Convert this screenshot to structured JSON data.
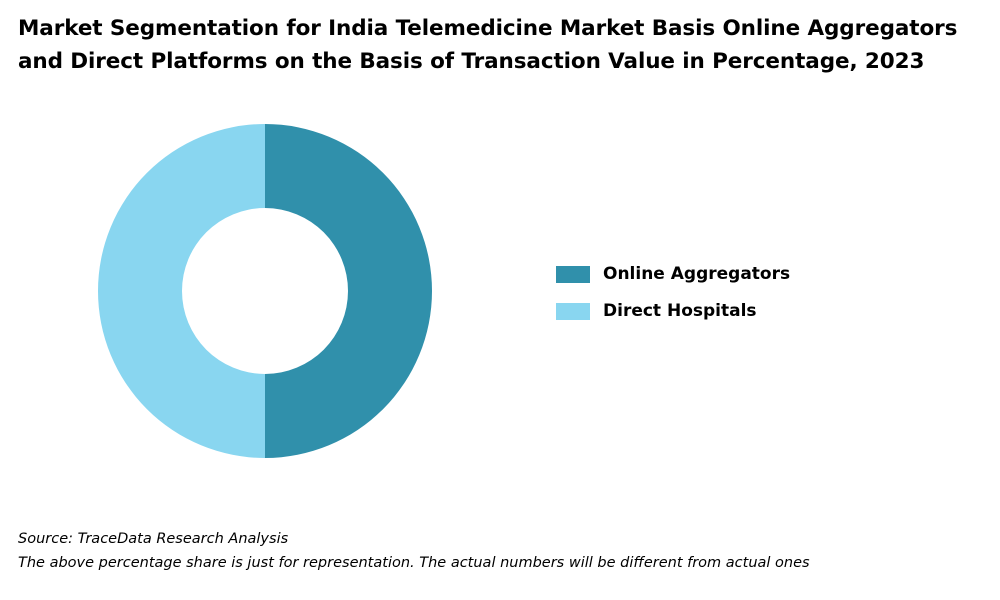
{
  "title_lines": [
    "Market Segmentation for India Telemedicine Market Basis Online Aggregators",
    "and Direct Platforms on the Basis of Transaction Value in Percentage, 2023"
  ],
  "footer": {
    "source": "Source: TraceData Research Analysis",
    "note": "The above percentage share is just for representation. The actual numbers will be different from actual ones"
  },
  "colors": {
    "online_aggregators": "#3090ab",
    "direct_hospitals": "#89d6f0"
  },
  "chart_data": {
    "type": "pie",
    "style": "donut",
    "title": "Market Segmentation for India Telemedicine Market Basis Online Aggregators and Direct Platforms on the Basis of Transaction Value in Percentage, 2023",
    "categories": [
      "Online Aggregators",
      "Direct Hospitals"
    ],
    "values": [
      50,
      50
    ],
    "unit": "%",
    "legend": "right",
    "colors": [
      "#3090ab",
      "#89d6f0"
    ]
  }
}
